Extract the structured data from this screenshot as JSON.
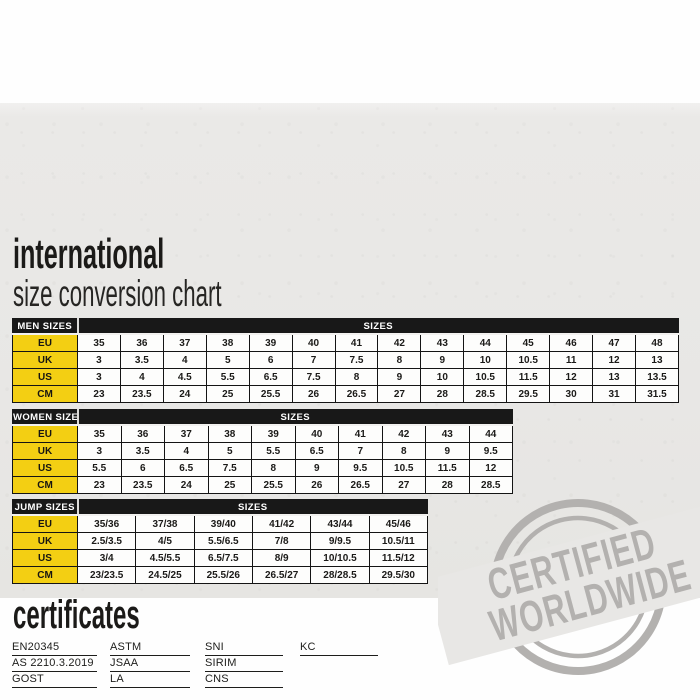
{
  "header": {
    "title_line1": "international",
    "title_line2": "size conversion chart"
  },
  "tables": [
    {
      "label": "MEN SIZES",
      "sizes_label": "SIZES",
      "rows": [
        {
          "label": "EU",
          "values": [
            "35",
            "36",
            "37",
            "38",
            "39",
            "40",
            "41",
            "42",
            "43",
            "44",
            "45",
            "46",
            "47",
            "48"
          ]
        },
        {
          "label": "UK",
          "values": [
            "3",
            "3.5",
            "4",
            "5",
            "6",
            "7",
            "7.5",
            "8",
            "9",
            "10",
            "10.5",
            "11",
            "12",
            "13"
          ]
        },
        {
          "label": "US",
          "values": [
            "3",
            "4",
            "4.5",
            "5.5",
            "6.5",
            "7.5",
            "8",
            "9",
            "10",
            "10.5",
            "11.5",
            "12",
            "13",
            "13.5"
          ]
        },
        {
          "label": "CM",
          "values": [
            "23",
            "23.5",
            "24",
            "25",
            "25.5",
            "26",
            "26.5",
            "27",
            "28",
            "28.5",
            "29.5",
            "30",
            "31",
            "31.5"
          ]
        }
      ]
    },
    {
      "label": "WOMEN SIZES",
      "sizes_label": "SIZES",
      "rows": [
        {
          "label": "EU",
          "values": [
            "35",
            "36",
            "37",
            "38",
            "39",
            "40",
            "41",
            "42",
            "43",
            "44"
          ]
        },
        {
          "label": "UK",
          "values": [
            "3",
            "3.5",
            "4",
            "5",
            "5.5",
            "6.5",
            "7",
            "8",
            "9",
            "9.5"
          ]
        },
        {
          "label": "US",
          "values": [
            "5.5",
            "6",
            "6.5",
            "7.5",
            "8",
            "9",
            "9.5",
            "10.5",
            "11.5",
            "12"
          ]
        },
        {
          "label": "CM",
          "values": [
            "23",
            "23.5",
            "24",
            "25",
            "25.5",
            "26",
            "26.5",
            "27",
            "28",
            "28.5"
          ]
        }
      ]
    },
    {
      "label": "JUMP SIZES",
      "sizes_label": "SIZES",
      "rows": [
        {
          "label": "EU",
          "values": [
            "35/36",
            "37/38",
            "39/40",
            "41/42",
            "43/44",
            "45/46"
          ]
        },
        {
          "label": "UK",
          "values": [
            "2.5/3.5",
            "4/5",
            "5.5/6.5",
            "7/8",
            "9/9.5",
            "10.5/11"
          ]
        },
        {
          "label": "US",
          "values": [
            "3/4",
            "4.5/5.5",
            "6.5/7.5",
            "8/9",
            "10/10.5",
            "11.5/12"
          ]
        },
        {
          "label": "CM",
          "values": [
            "23/23.5",
            "24.5/25",
            "25.5/26",
            "26.5/27",
            "28/28.5",
            "29.5/30"
          ]
        }
      ]
    }
  ],
  "certificates": {
    "title": "certificates",
    "columns": [
      [
        "EN20345",
        "AS 2210.3.2019",
        "GOST"
      ],
      [
        "ASTM",
        "JSAA",
        "LA"
      ],
      [
        "SNI",
        "SIRIM",
        "CNS"
      ],
      [
        "KC"
      ]
    ]
  },
  "stamp": {
    "line1": "CERTIFIED",
    "line2": "WORLDWIDE"
  },
  "colors": {
    "accent_yellow": "#f3cf13",
    "table_header_black": "#181818",
    "panel_gray": "#e8e7e5",
    "stamp_gray": "#b3b1af",
    "ink": "#1b1a18"
  }
}
